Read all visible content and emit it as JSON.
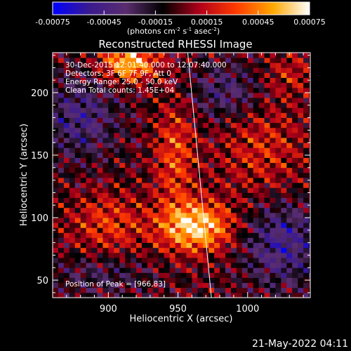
{
  "colorbar": {
    "ticks": [
      "-0.00075",
      "-0.00045",
      "-0.00015",
      "0.00015",
      "0.00045",
      "0.00075"
    ],
    "units_prefix": "(photons cm",
    "units_exp1": "-2",
    "units_mid": " s",
    "units_exp2": "-1",
    "units_mid2": " asec",
    "units_exp3": "-2",
    "units_suffix": ")",
    "stops": [
      "#0000ff",
      "#3a1a8f",
      "#5a2d6e",
      "#000000",
      "#b0001a",
      "#ff3a00",
      "#ffa800",
      "#ffffff"
    ]
  },
  "title": "Reconstructed RHESSI Image",
  "info": {
    "line1": "30-Dec-2015 12:01:40.000 to 12:07:40.000",
    "line2": "Detectors: 3F 6F 7F 9F, Att 0",
    "line3": "Energy Range: 25.0 - 50.0 keV",
    "line4": "Clean    Total counts: 1.45E+04",
    "peak": "Position of Peak = [966,83]"
  },
  "chart_data": {
    "type": "heatmap",
    "title": "Reconstructed RHESSI Image",
    "xlabel": "Heliocentric X (arcsec)",
    "ylabel": "Heliocentric Y (arcsec)",
    "xlim": [
      860,
      1045
    ],
    "ylim": [
      36,
      232
    ],
    "x_ticks": [
      900,
      950,
      1000
    ],
    "y_ticks": [
      50,
      100,
      150,
      200
    ],
    "colorbar_range": [
      -0.00075,
      0.00075
    ],
    "peak": [
      966,
      83
    ],
    "limb_line": {
      "x": [
        957,
        974
      ],
      "y": [
        232,
        36
      ]
    },
    "blobs": [
      {
        "x": 963,
        "y": 93,
        "amp": 0.00072,
        "sx": 18,
        "sy": 14
      },
      {
        "x": 915,
        "y": 224,
        "amp": 0.00065,
        "sx": 14,
        "sy": 10
      },
      {
        "x": 948,
        "y": 150,
        "amp": 0.00035,
        "sx": 10,
        "sy": 30
      },
      {
        "x": 900,
        "y": 95,
        "amp": 0.0003,
        "sx": 20,
        "sy": 18
      },
      {
        "x": 1010,
        "y": 155,
        "amp": 0.00025,
        "sx": 22,
        "sy": 28
      },
      {
        "x": 1030,
        "y": 215,
        "amp": 0.0002,
        "sx": 12,
        "sy": 12
      },
      {
        "x": 880,
        "y": 180,
        "amp": -0.00035,
        "sx": 18,
        "sy": 22
      },
      {
        "x": 1025,
        "y": 80,
        "amp": -0.0004,
        "sx": 20,
        "sy": 24
      },
      {
        "x": 985,
        "y": 200,
        "amp": -0.0003,
        "sx": 18,
        "sy": 16
      },
      {
        "x": 895,
        "y": 55,
        "amp": -0.0002,
        "sx": 25,
        "sy": 12
      }
    ]
  },
  "timestamp": "21-May-2022 04:11"
}
